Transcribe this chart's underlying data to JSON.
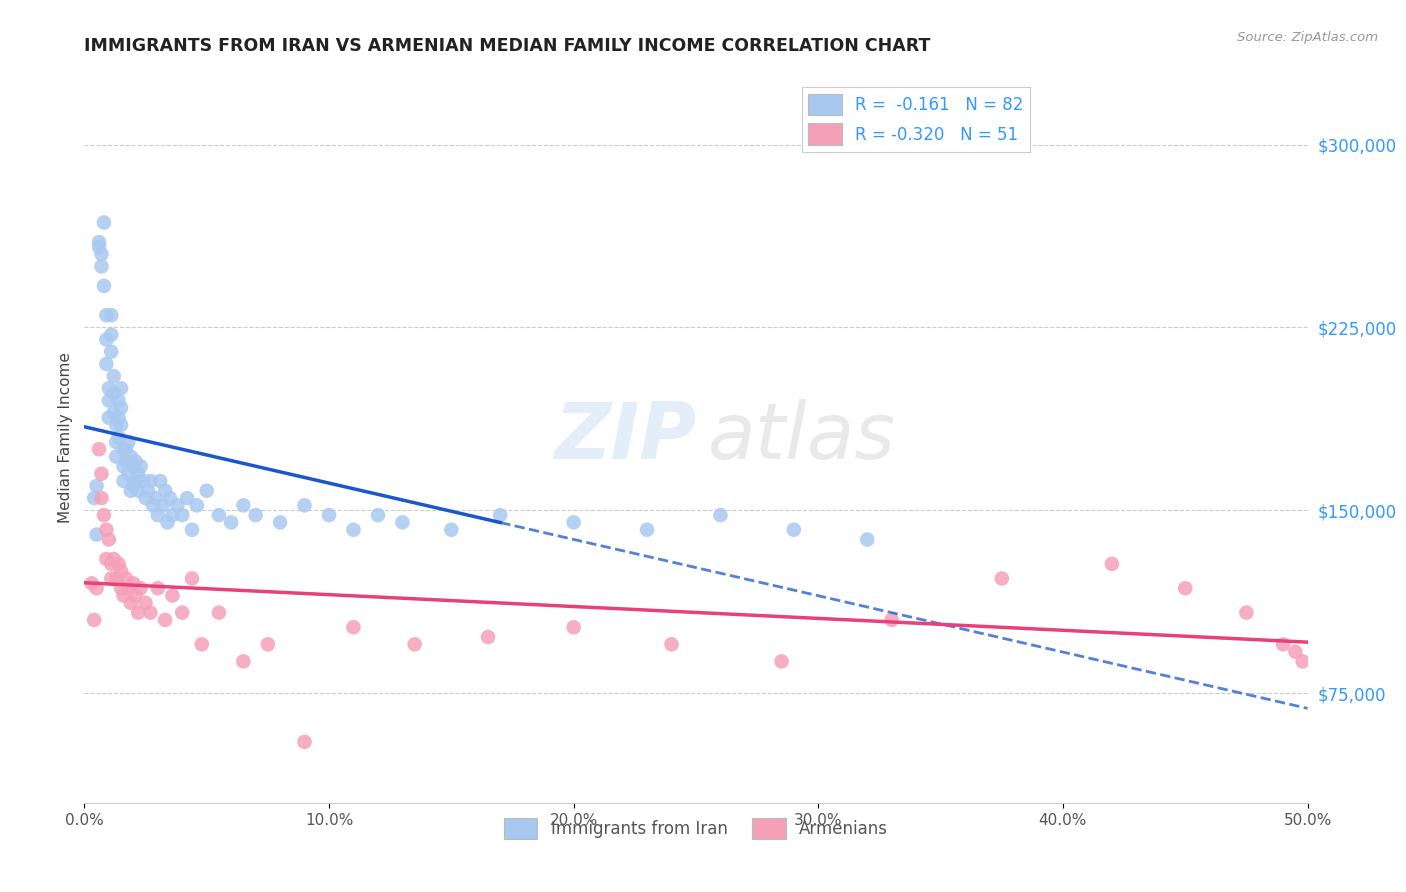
{
  "title": "IMMIGRANTS FROM IRAN VS ARMENIAN MEDIAN FAMILY INCOME CORRELATION CHART",
  "source": "Source: ZipAtlas.com",
  "ylabel": "Median Family Income",
  "right_yticks": [
    75000,
    150000,
    225000,
    300000
  ],
  "right_ytick_labels": [
    "$75,000",
    "$150,000",
    "$225,000",
    "$300,000"
  ],
  "xlim": [
    0.0,
    0.5
  ],
  "ylim": [
    30000,
    330000
  ],
  "iran_color": "#a8c8f0",
  "armenian_color": "#f5a0b8",
  "iran_line_color": "#1a56cc",
  "armenian_line_color": "#e8417a",
  "iran_scatter_x": [
    0.004,
    0.005,
    0.005,
    0.006,
    0.006,
    0.007,
    0.007,
    0.008,
    0.008,
    0.009,
    0.009,
    0.009,
    0.01,
    0.01,
    0.01,
    0.011,
    0.011,
    0.011,
    0.012,
    0.012,
    0.012,
    0.013,
    0.013,
    0.013,
    0.014,
    0.014,
    0.014,
    0.015,
    0.015,
    0.015,
    0.016,
    0.016,
    0.016,
    0.017,
    0.017,
    0.018,
    0.018,
    0.019,
    0.019,
    0.02,
    0.02,
    0.021,
    0.021,
    0.022,
    0.022,
    0.023,
    0.024,
    0.025,
    0.026,
    0.027,
    0.028,
    0.029,
    0.03,
    0.031,
    0.032,
    0.033,
    0.034,
    0.035,
    0.036,
    0.038,
    0.04,
    0.042,
    0.044,
    0.046,
    0.05,
    0.055,
    0.06,
    0.065,
    0.07,
    0.08,
    0.09,
    0.1,
    0.11,
    0.12,
    0.13,
    0.15,
    0.17,
    0.2,
    0.23,
    0.26,
    0.29,
    0.32
  ],
  "iran_scatter_y": [
    155000,
    140000,
    160000,
    260000,
    258000,
    255000,
    250000,
    268000,
    242000,
    230000,
    220000,
    210000,
    200000,
    195000,
    188000,
    230000,
    222000,
    215000,
    205000,
    198000,
    190000,
    185000,
    178000,
    172000,
    195000,
    188000,
    180000,
    200000,
    192000,
    185000,
    175000,
    168000,
    162000,
    175000,
    170000,
    178000,
    165000,
    172000,
    158000,
    168000,
    160000,
    170000,
    162000,
    165000,
    158000,
    168000,
    162000,
    155000,
    158000,
    162000,
    152000,
    155000,
    148000,
    162000,
    152000,
    158000,
    145000,
    155000,
    148000,
    152000,
    148000,
    155000,
    142000,
    152000,
    158000,
    148000,
    145000,
    152000,
    148000,
    145000,
    152000,
    148000,
    142000,
    148000,
    145000,
    142000,
    148000,
    145000,
    142000,
    148000,
    142000,
    138000
  ],
  "armenian_scatter_x": [
    0.003,
    0.004,
    0.005,
    0.006,
    0.007,
    0.007,
    0.008,
    0.009,
    0.009,
    0.01,
    0.011,
    0.011,
    0.012,
    0.013,
    0.014,
    0.015,
    0.015,
    0.016,
    0.017,
    0.018,
    0.019,
    0.02,
    0.021,
    0.022,
    0.023,
    0.025,
    0.027,
    0.03,
    0.033,
    0.036,
    0.04,
    0.044,
    0.048,
    0.055,
    0.065,
    0.075,
    0.09,
    0.11,
    0.135,
    0.165,
    0.2,
    0.24,
    0.285,
    0.33,
    0.375,
    0.42,
    0.45,
    0.475,
    0.49,
    0.495,
    0.498
  ],
  "armenian_scatter_y": [
    120000,
    105000,
    118000,
    175000,
    165000,
    155000,
    148000,
    142000,
    130000,
    138000,
    128000,
    122000,
    130000,
    122000,
    128000,
    118000,
    125000,
    115000,
    122000,
    118000,
    112000,
    120000,
    115000,
    108000,
    118000,
    112000,
    108000,
    118000,
    105000,
    115000,
    108000,
    122000,
    95000,
    108000,
    88000,
    95000,
    55000,
    102000,
    95000,
    98000,
    102000,
    95000,
    88000,
    105000,
    122000,
    128000,
    118000,
    108000,
    95000,
    92000,
    88000
  ]
}
